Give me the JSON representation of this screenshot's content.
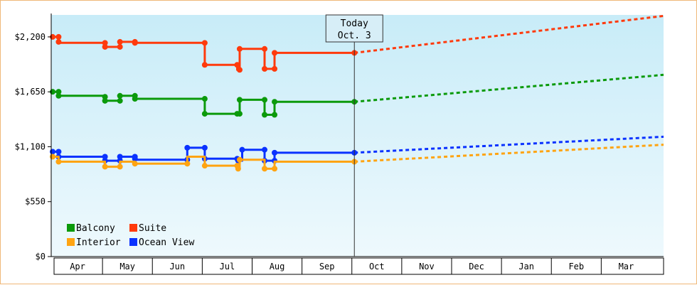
{
  "chart_data": {
    "type": "line",
    "title": "",
    "xlabel": "",
    "ylabel": "",
    "ylim": [
      0,
      2420
    ],
    "y_ticks": [
      0,
      550,
      1100,
      1650,
      2200
    ],
    "y_tick_labels": [
      "$0",
      "$550",
      "$1,100",
      "$1,650",
      "$2,200"
    ],
    "x_range_months": [
      0,
      12.25
    ],
    "month_labels": [
      "Apr",
      "May",
      "Jun",
      "Jul",
      "Aug",
      "Sep",
      "Oct",
      "Nov",
      "Dec",
      "Jan",
      "Feb",
      "Mar"
    ],
    "today": {
      "line1": "Today",
      "line2": "Oct. 3",
      "x": 6.05
    },
    "background_gradient": [
      "#c8ecf8",
      "#eef9fd"
    ],
    "legend": {
      "placement": "bottom-left"
    },
    "series": [
      {
        "name": "Suite",
        "color": "#ff3a0c",
        "points": [
          [
            0,
            2200
          ],
          [
            0.12,
            2200
          ],
          [
            0.12,
            2150
          ],
          [
            0.12,
            2140
          ],
          [
            1.05,
            2140
          ],
          [
            1.05,
            2100
          ],
          [
            1.35,
            2100
          ],
          [
            1.35,
            2150
          ],
          [
            1.65,
            2150
          ],
          [
            1.65,
            2140
          ],
          [
            3.05,
            2140
          ],
          [
            3.05,
            1920
          ],
          [
            3.7,
            1920
          ],
          [
            3.7,
            1870
          ],
          [
            3.75,
            1870
          ],
          [
            3.75,
            2080
          ],
          [
            4.25,
            2080
          ],
          [
            4.25,
            1880
          ],
          [
            4.45,
            1880
          ],
          [
            4.45,
            2040
          ],
          [
            6.05,
            2040
          ]
        ],
        "markers": [
          [
            0,
            2200
          ],
          [
            0.12,
            2200
          ],
          [
            0.12,
            2150
          ],
          [
            1.05,
            2140
          ],
          [
            1.05,
            2100
          ],
          [
            1.35,
            2100
          ],
          [
            1.35,
            2150
          ],
          [
            1.65,
            2150
          ],
          [
            1.65,
            2140
          ],
          [
            3.05,
            2140
          ],
          [
            3.05,
            1920
          ],
          [
            3.7,
            1920
          ],
          [
            3.75,
            1870
          ],
          [
            3.75,
            2080
          ],
          [
            4.25,
            2080
          ],
          [
            4.25,
            1880
          ],
          [
            4.45,
            1880
          ],
          [
            4.45,
            2040
          ],
          [
            6.05,
            2040
          ]
        ],
        "projection": [
          [
            6.05,
            2040
          ],
          [
            12.25,
            2410
          ]
        ]
      },
      {
        "name": "Balcony",
        "color": "#0b9a0b",
        "points": [
          [
            0,
            1650
          ],
          [
            0.12,
            1650
          ],
          [
            0.12,
            1610
          ],
          [
            1.05,
            1610
          ],
          [
            1.05,
            1560
          ],
          [
            1.35,
            1560
          ],
          [
            1.35,
            1610
          ],
          [
            1.65,
            1610
          ],
          [
            1.65,
            1580
          ],
          [
            3.05,
            1580
          ],
          [
            3.05,
            1430
          ],
          [
            3.7,
            1430
          ],
          [
            3.75,
            1430
          ],
          [
            3.75,
            1570
          ],
          [
            4.25,
            1570
          ],
          [
            4.25,
            1420
          ],
          [
            4.45,
            1420
          ],
          [
            4.45,
            1550
          ],
          [
            6.05,
            1550
          ]
        ],
        "markers": [
          [
            0,
            1650
          ],
          [
            0.12,
            1650
          ],
          [
            0.12,
            1610
          ],
          [
            1.05,
            1600
          ],
          [
            1.05,
            1560
          ],
          [
            1.35,
            1560
          ],
          [
            1.35,
            1610
          ],
          [
            1.65,
            1610
          ],
          [
            1.65,
            1580
          ],
          [
            3.05,
            1580
          ],
          [
            3.05,
            1430
          ],
          [
            3.7,
            1430
          ],
          [
            3.75,
            1430
          ],
          [
            3.75,
            1570
          ],
          [
            4.25,
            1570
          ],
          [
            4.25,
            1420
          ],
          [
            4.45,
            1420
          ],
          [
            4.45,
            1550
          ],
          [
            6.05,
            1550
          ]
        ],
        "projection": [
          [
            6.05,
            1550
          ],
          [
            12.25,
            1820
          ]
        ]
      },
      {
        "name": "Ocean View",
        "color": "#0a32ff",
        "points": [
          [
            0,
            1050
          ],
          [
            0.12,
            1050
          ],
          [
            0.12,
            1000
          ],
          [
            1.05,
            1000
          ],
          [
            1.05,
            960
          ],
          [
            1.35,
            960
          ],
          [
            1.35,
            1000
          ],
          [
            1.65,
            1000
          ],
          [
            1.65,
            970
          ],
          [
            2.7,
            970
          ],
          [
            2.7,
            1090
          ],
          [
            3.05,
            1090
          ],
          [
            3.05,
            980
          ],
          [
            3.7,
            980
          ],
          [
            3.7,
            960
          ],
          [
            3.8,
            960
          ],
          [
            3.8,
            1070
          ],
          [
            4.25,
            1070
          ],
          [
            4.25,
            960
          ],
          [
            4.45,
            960
          ],
          [
            4.45,
            1040
          ],
          [
            6.05,
            1040
          ]
        ],
        "markers": [
          [
            0,
            1050
          ],
          [
            0.12,
            1050
          ],
          [
            0.12,
            1000
          ],
          [
            1.05,
            1000
          ],
          [
            1.05,
            960
          ],
          [
            1.35,
            960
          ],
          [
            1.35,
            1000
          ],
          [
            1.65,
            1000
          ],
          [
            1.65,
            980
          ],
          [
            2.7,
            970
          ],
          [
            2.7,
            1090
          ],
          [
            3.05,
            1090
          ],
          [
            3.05,
            980
          ],
          [
            3.7,
            980
          ],
          [
            3.72,
            960
          ],
          [
            3.8,
            1070
          ],
          [
            4.25,
            1070
          ],
          [
            4.25,
            960
          ],
          [
            4.45,
            960
          ],
          [
            4.45,
            1040
          ],
          [
            6.05,
            1040
          ]
        ],
        "projection": [
          [
            6.05,
            1040
          ],
          [
            12.25,
            1200
          ]
        ]
      },
      {
        "name": "Interior",
        "color": "#ffa412",
        "points": [
          [
            0,
            1000
          ],
          [
            0.12,
            1000
          ],
          [
            0.12,
            950
          ],
          [
            1.05,
            950
          ],
          [
            1.05,
            900
          ],
          [
            1.35,
            900
          ],
          [
            1.35,
            950
          ],
          [
            1.65,
            950
          ],
          [
            1.65,
            930
          ],
          [
            2.7,
            930
          ],
          [
            2.7,
            1000
          ],
          [
            3.05,
            1000
          ],
          [
            3.05,
            910
          ],
          [
            3.7,
            910
          ],
          [
            3.7,
            880
          ],
          [
            3.75,
            880
          ],
          [
            3.75,
            970
          ],
          [
            4.25,
            970
          ],
          [
            4.25,
            880
          ],
          [
            4.45,
            880
          ],
          [
            4.45,
            950
          ],
          [
            6.05,
            950
          ]
        ],
        "markers": [
          [
            0,
            1000
          ],
          [
            0.12,
            950
          ],
          [
            1.05,
            900
          ],
          [
            1.35,
            900
          ],
          [
            1.65,
            930
          ],
          [
            2.7,
            930
          ],
          [
            3.05,
            910
          ],
          [
            3.7,
            910
          ],
          [
            3.72,
            880
          ],
          [
            3.75,
            970
          ],
          [
            4.25,
            880
          ],
          [
            4.45,
            880
          ],
          [
            6.05,
            950
          ]
        ],
        "projection": [
          [
            6.05,
            950
          ],
          [
            12.25,
            1120
          ]
        ]
      }
    ],
    "legend_order": [
      "Balcony",
      "Suite",
      "Interior",
      "Ocean View"
    ]
  }
}
